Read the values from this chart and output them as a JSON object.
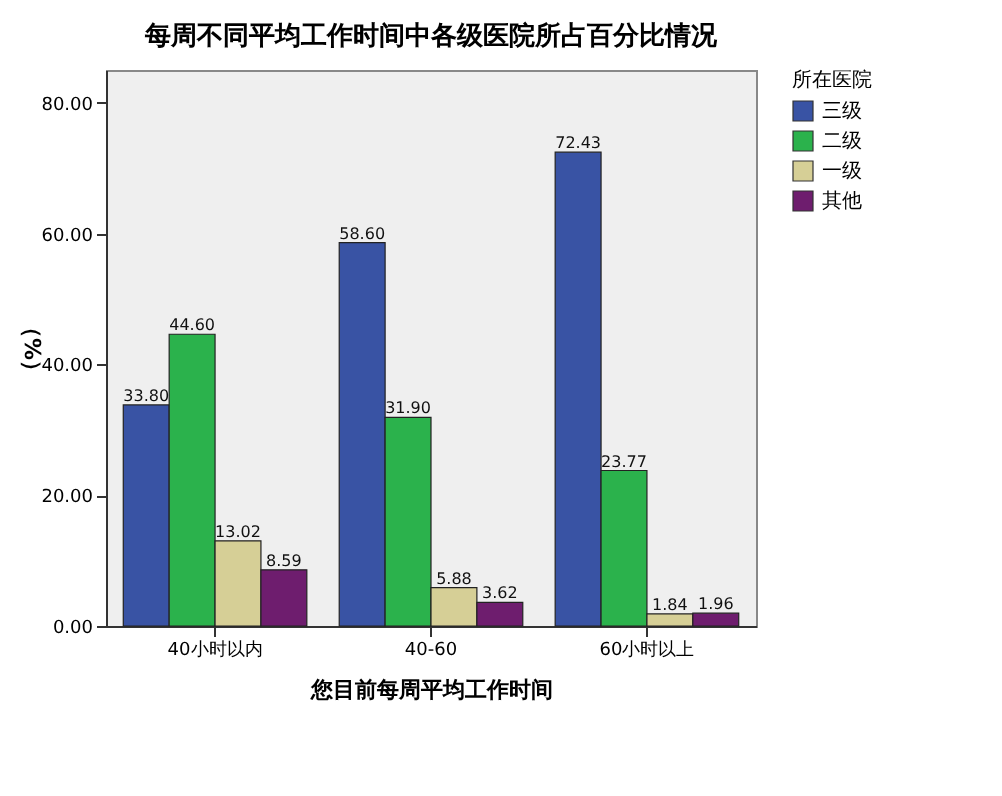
{
  "chart_data": {
    "type": "bar",
    "title": "每周不同平均工作时间中各级医院所占百分比情况",
    "xlabel": "您目前每周平均工作时间",
    "ylabel": "（%）",
    "legend_title": "所在医院",
    "categories": [
      "40小时以内",
      "40-60",
      "60小时以上"
    ],
    "series": [
      {
        "name": "三级",
        "color": "#3953a4",
        "values": [
          33.8,
          58.6,
          72.43
        ],
        "value_labels": [
          "33.80",
          "58.60",
          "72.43"
        ]
      },
      {
        "name": "二级",
        "color": "#2bb24c",
        "values": [
          44.6,
          31.9,
          23.77
        ],
        "value_labels": [
          "44.60",
          "31.90",
          "23.77"
        ]
      },
      {
        "name": "一级",
        "color": "#d6cf96",
        "values": [
          13.02,
          5.88,
          1.84
        ],
        "value_labels": [
          "13.02",
          "5.88",
          "1.84"
        ]
      },
      {
        "name": "其他",
        "color": "#6e1d6e",
        "values": [
          8.59,
          3.62,
          1.96
        ],
        "value_labels": [
          "8.59",
          "3.62",
          "1.96"
        ]
      }
    ],
    "ylim": [
      0,
      85
    ],
    "yticks": [
      {
        "value": 0,
        "label": "0.00"
      },
      {
        "value": 20,
        "label": "20.00"
      },
      {
        "value": 40,
        "label": "40.00"
      },
      {
        "value": 60,
        "label": "60.00"
      },
      {
        "value": 80,
        "label": "80.00"
      }
    ],
    "grid": false,
    "legend": "right"
  }
}
